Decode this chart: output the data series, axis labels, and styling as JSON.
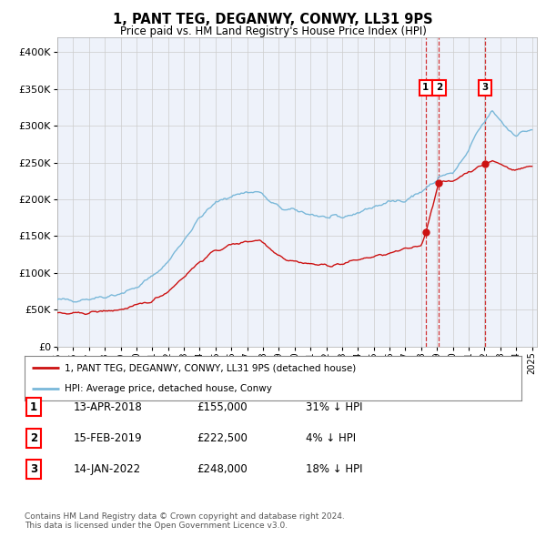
{
  "title": "1, PANT TEG, DEGANWY, CONWY, LL31 9PS",
  "subtitle": "Price paid vs. HM Land Registry's House Price Index (HPI)",
  "ylim": [
    0,
    420000
  ],
  "yticks": [
    0,
    50000,
    100000,
    150000,
    200000,
    250000,
    300000,
    350000,
    400000
  ],
  "ytick_labels": [
    "£0",
    "£50K",
    "£100K",
    "£150K",
    "£200K",
    "£250K",
    "£300K",
    "£350K",
    "£400K"
  ],
  "hpi_color": "#7ab8d9",
  "price_color": "#cc1111",
  "vline_color": "#cc1111",
  "trans_dates_decimal": [
    2018.286,
    2019.122,
    2022.042
  ],
  "trans_prices": [
    155000,
    222500,
    248000
  ],
  "trans_labels": [
    "1",
    "2",
    "3"
  ],
  "legend_house_label": "1, PANT TEG, DEGANWY, CONWY, LL31 9PS (detached house)",
  "legend_hpi_label": "HPI: Average price, detached house, Conwy",
  "footnote": "Contains HM Land Registry data © Crown copyright and database right 2024.\nThis data is licensed under the Open Government Licence v3.0.",
  "table_rows": [
    [
      "1",
      "13-APR-2018",
      "£155,000",
      "31% ↓ HPI"
    ],
    [
      "2",
      "15-FEB-2019",
      "£222,500",
      "4% ↓ HPI"
    ],
    [
      "3",
      "14-JAN-2022",
      "£248,000",
      "18% ↓ HPI"
    ]
  ],
  "background_color": "#eef2fa",
  "hpi_anchors_t": [
    1995.0,
    1996.0,
    1997.0,
    1998.0,
    1999.0,
    2000.0,
    2001.0,
    2002.0,
    2003.0,
    2004.0,
    2005.0,
    2006.0,
    2007.0,
    2007.8,
    2008.5,
    2009.5,
    2010.0,
    2011.0,
    2012.0,
    2013.0,
    2014.0,
    2015.0,
    2016.0,
    2017.0,
    2018.0,
    2018.286,
    2019.0,
    2019.122,
    2020.0,
    2021.0,
    2021.5,
    2022.0,
    2022.5,
    2023.0,
    2023.5,
    2024.0,
    2024.9
  ],
  "hpi_anchors_v": [
    63000,
    63000,
    65000,
    68000,
    72000,
    80000,
    95000,
    115000,
    145000,
    175000,
    195000,
    205000,
    210000,
    210000,
    195000,
    185000,
    185000,
    180000,
    175000,
    175000,
    182000,
    190000,
    196000,
    200000,
    210000,
    215000,
    225000,
    232000,
    235000,
    265000,
    290000,
    305000,
    320000,
    308000,
    295000,
    288000,
    295000
  ],
  "price_anchors_t": [
    1995.0,
    1996.0,
    1997.0,
    1998.0,
    1999.0,
    2000.0,
    2001.0,
    2002.0,
    2003.0,
    2004.0,
    2005.0,
    2006.0,
    2007.0,
    2007.8,
    2008.5,
    2009.5,
    2010.0,
    2011.0,
    2012.0,
    2013.0,
    2014.0,
    2015.0,
    2016.0,
    2017.0,
    2018.0,
    2018.286,
    2019.0,
    2019.122,
    2020.0,
    2021.0,
    2021.5,
    2022.042,
    2022.5,
    2023.0,
    2023.5,
    2024.0,
    2024.9
  ],
  "price_anchors_v": [
    45000,
    44000,
    46000,
    48000,
    50000,
    55000,
    62000,
    75000,
    95000,
    115000,
    130000,
    138000,
    143000,
    145000,
    132000,
    118000,
    116000,
    112000,
    110000,
    112000,
    118000,
    122000,
    126000,
    132000,
    138000,
    155000,
    215000,
    222500,
    225000,
    238000,
    242000,
    248000,
    252000,
    248000,
    243000,
    240000,
    245000
  ]
}
